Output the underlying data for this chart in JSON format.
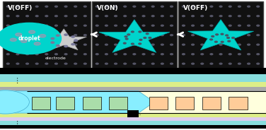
{
  "panel1_label": "V(OFF)",
  "panel2_label": "V(ON)",
  "panel3_label": "V(OFF)",
  "droplet_label": "droplet",
  "electrode_label": "electrode",
  "bg_color": "#111111",
  "dot_color": "#555566",
  "cyan_color": "#00d4cc",
  "star_gray": "#cccccc",
  "star_cyan": "#00d4cc",
  "white": "#ffffff",
  "black": "#000000",
  "light_cyan_bg": "#c8eeee",
  "yellow_strip": "#ddee88",
  "channel_cream": "#ffffdd",
  "liquid_cyan": "#88eeff",
  "electrode_green": "#aaddaa",
  "electrode_peach": "#ffcc99",
  "pink_strip": "#ddccee",
  "arrow_color": "#ffffff"
}
